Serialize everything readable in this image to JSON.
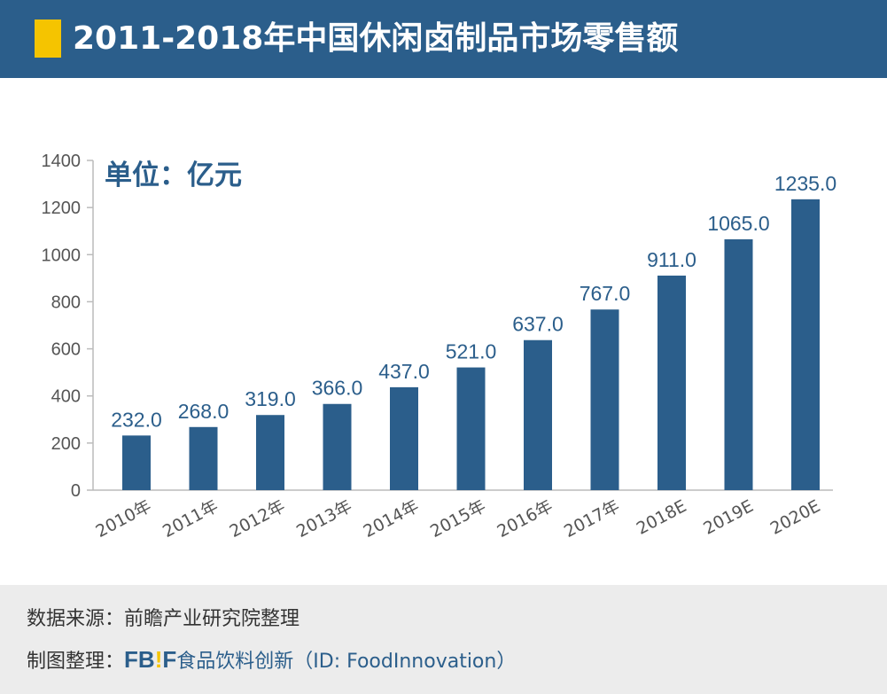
{
  "header": {
    "title": "2011-2018年中国休闲卤制品市场零售额"
  },
  "unit_label": "单位：亿元",
  "chart_data": {
    "type": "bar",
    "title": "2011-2018年中国休闲卤制品市场零售额",
    "ylabel": "单位：亿元",
    "categories": [
      "2010年",
      "2011年",
      "2012年",
      "2013年",
      "2014年",
      "2015年",
      "2016年",
      "2017年",
      "2018E",
      "2019E",
      "2020E"
    ],
    "values": [
      232.0,
      268.0,
      319.0,
      366.0,
      437.0,
      521.0,
      637.0,
      767.0,
      911.0,
      1065.0,
      1235.0
    ],
    "data_labels": [
      "232.0",
      "268.0",
      "319.0",
      "366.0",
      "437.0",
      "521.0",
      "637.0",
      "767.0",
      "911.0",
      "1065.0",
      "1235.0"
    ],
    "ylim": [
      0,
      1400
    ],
    "yticks": [
      0,
      200,
      400,
      600,
      800,
      1000,
      1200,
      1400
    ],
    "grid": false,
    "bar_color": "#2b5e8b"
  },
  "footer": {
    "source_label": "数据来源：",
    "source": "前瞻产业研究院整理",
    "made_label": "制图整理：",
    "logo": "FB!F",
    "brand": "食品饮料创新",
    "id": "（ID: FoodInnovation）"
  }
}
